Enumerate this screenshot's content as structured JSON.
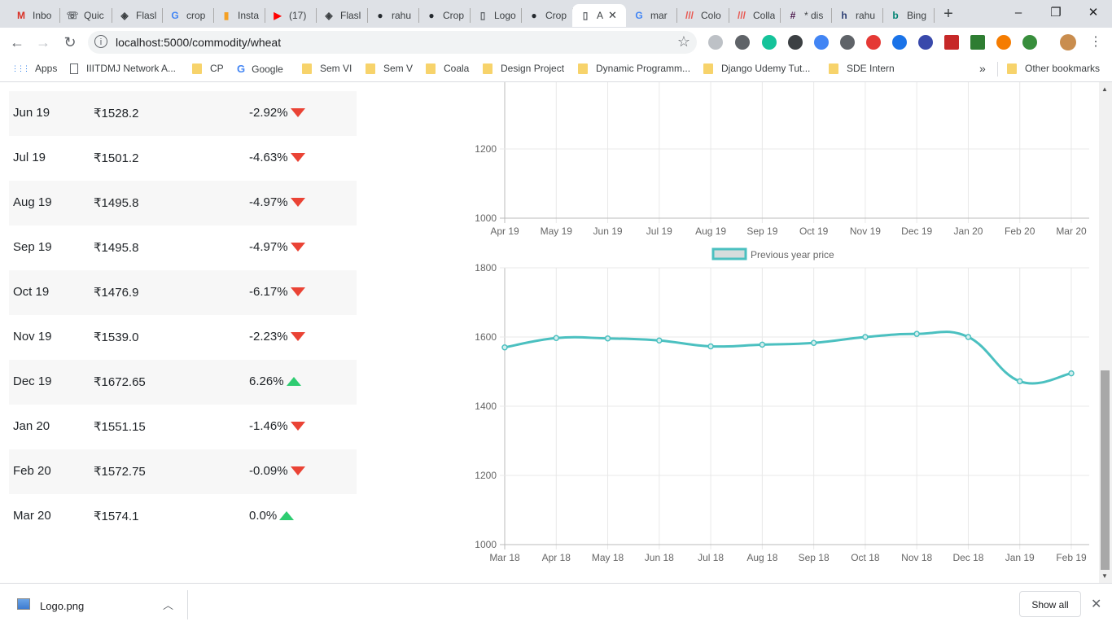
{
  "browser": {
    "tabs": [
      {
        "label": "Inbo",
        "icon": "gmail-icon",
        "color": "#d93025",
        "glyph": "M"
      },
      {
        "label": "Quic",
        "icon": "phone-icon",
        "color": "#5f6368",
        "glyph": "☏"
      },
      {
        "label": "Flasl",
        "icon": "flask-icon",
        "color": "#3c4043",
        "glyph": "◈"
      },
      {
        "label": "crop",
        "icon": "google-icon",
        "color": "#4285f4",
        "glyph": "G"
      },
      {
        "label": "Insta",
        "icon": "chart-icon",
        "color": "#f4a024",
        "glyph": "▮"
      },
      {
        "label": "(17)",
        "icon": "youtube-icon",
        "color": "#ff0000",
        "glyph": "▶"
      },
      {
        "label": "Flasl",
        "icon": "flask-icon",
        "color": "#3c4043",
        "glyph": "◈"
      },
      {
        "label": "rahu",
        "icon": "github-icon",
        "color": "#24292e",
        "glyph": "●"
      },
      {
        "label": "Crop",
        "icon": "github-icon",
        "color": "#24292e",
        "glyph": "●"
      },
      {
        "label": "Logo",
        "icon": "page-icon",
        "color": "#5f6368",
        "glyph": "▯"
      },
      {
        "label": "Crop",
        "icon": "github-icon",
        "color": "#24292e",
        "glyph": "●"
      },
      {
        "label": "A",
        "icon": "page-icon",
        "color": "#5f6368",
        "glyph": "▯",
        "active": true
      },
      {
        "label": "mar",
        "icon": "google-icon",
        "color": "#4285f4",
        "glyph": "G"
      },
      {
        "label": "Colo",
        "icon": "coolors-icon",
        "color": "#e8554e",
        "glyph": "///"
      },
      {
        "label": "Colla",
        "icon": "coolors-icon",
        "color": "#e8554e",
        "glyph": "///"
      },
      {
        "label": "* dis",
        "icon": "slack-icon",
        "color": "#4a154b",
        "glyph": "#"
      },
      {
        "label": "rahu",
        "icon": "hashnode-icon",
        "color": "#2c3e73",
        "glyph": "h"
      },
      {
        "label": "Bing",
        "icon": "bing-icon",
        "color": "#008373",
        "glyph": "b"
      }
    ],
    "new_tab": "+",
    "minimize": "–",
    "maximize": "❐",
    "close": "✕",
    "back": "←",
    "forward": "→",
    "reload": "↻",
    "url": "localhost:5000/commodity/wheat",
    "info": "i",
    "star": "☆",
    "bookmarks": [
      {
        "label": "Apps",
        "type": "apps"
      },
      {
        "label": "IIITDMJ Network A...",
        "type": "page"
      },
      {
        "label": "CP",
        "type": "folder"
      },
      {
        "label": "Google",
        "type": "google"
      },
      {
        "label": "Sem VI",
        "type": "folder"
      },
      {
        "label": "Sem V",
        "type": "folder"
      },
      {
        "label": "Coala",
        "type": "folder"
      },
      {
        "label": "Design Project",
        "type": "folder"
      },
      {
        "label": "Dynamic Programm...",
        "type": "folder"
      },
      {
        "label": "Django Udemy Tut...",
        "type": "folder"
      },
      {
        "label": "SDE Intern",
        "type": "folder"
      }
    ],
    "more_bookmarks": "»",
    "other_bookmarks": "Other bookmarks"
  },
  "forecast_table": {
    "rows": [
      {
        "month": "Jun 19",
        "price": "₹1528.2",
        "change": "-2.92%",
        "direction": "down"
      },
      {
        "month": "Jul 19",
        "price": "₹1501.2",
        "change": "-4.63%",
        "direction": "down"
      },
      {
        "month": "Aug 19",
        "price": "₹1495.8",
        "change": "-4.97%",
        "direction": "down"
      },
      {
        "month": "Sep 19",
        "price": "₹1495.8",
        "change": "-4.97%",
        "direction": "down"
      },
      {
        "month": "Oct 19",
        "price": "₹1476.9",
        "change": "-6.17%",
        "direction": "down"
      },
      {
        "month": "Nov 19",
        "price": "₹1539.0",
        "change": "-2.23%",
        "direction": "down"
      },
      {
        "month": "Dec 19",
        "price": "₹1672.65",
        "change": "6.26%",
        "direction": "up"
      },
      {
        "month": "Jan 20",
        "price": "₹1551.15",
        "change": "-1.46%",
        "direction": "down"
      },
      {
        "month": "Feb 20",
        "price": "₹1572.75",
        "change": "-0.09%",
        "direction": "down"
      },
      {
        "month": "Mar 20",
        "price": "₹1574.1",
        "change": "0.0%",
        "direction": "up"
      }
    ],
    "down_color": "#ea4335",
    "up_color": "#2ecc71"
  },
  "chart_data": [
    {
      "type": "line",
      "title": "",
      "categories": [
        "Apr 19",
        "May 19",
        "Jun 19",
        "Jul 19",
        "Aug 19",
        "Sep 19",
        "Oct 19",
        "Nov 19",
        "Dec 19",
        "Jan 20",
        "Feb 20",
        "Mar 20"
      ],
      "yticks": [
        1000,
        1200
      ],
      "visible_ylim": [
        1000,
        1200
      ],
      "grid": true
    },
    {
      "type": "line",
      "categories": [
        "Mar 18",
        "Apr 18",
        "May 18",
        "Jun 18",
        "Jul 18",
        "Aug 18",
        "Sep 18",
        "Oct 18",
        "Nov 18",
        "Dec 18",
        "Jan 19",
        "Feb 19"
      ],
      "series": [
        {
          "name": "Previous year price",
          "values": [
            1570,
            1597,
            1596,
            1590,
            1573,
            1578,
            1583,
            1600,
            1609,
            1600,
            1472,
            1495
          ],
          "color": "#4bc0c0"
        }
      ],
      "ylim": [
        1000,
        1800
      ],
      "yticks": [
        1000,
        1200,
        1400,
        1600,
        1800
      ],
      "legend": "top-center",
      "grid": true
    }
  ],
  "downloads": {
    "file": "Logo.png",
    "chevron": "︿",
    "show_all": "Show all",
    "close": "✕"
  }
}
